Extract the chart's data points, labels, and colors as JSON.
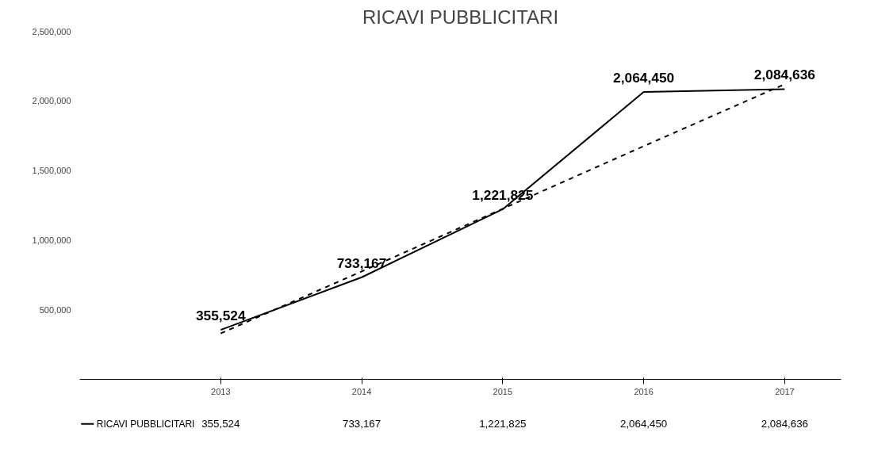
{
  "chart_data": {
    "type": "line",
    "title": "RICAVI PUBBLICITARI",
    "categories": [
      "2013",
      "2014",
      "2015",
      "2016",
      "2017"
    ],
    "series": [
      {
        "name": "RICAVI PUBBLICITARI",
        "color": "#000000",
        "values": [
          355524,
          733167,
          1221825,
          2064450,
          2084636
        ],
        "value_labels": [
          "355,524",
          "733,167",
          "1,221,825",
          "2,064,450",
          "2,084,636"
        ],
        "line_style": "solid"
      },
      {
        "type": "line",
        "color": "#000000",
        "values": [
          330000,
          775000,
          1225000,
          1675000,
          2120000
        ],
        "line_style": "dashed"
      }
    ],
    "ylim": [
      0,
      2500000
    ],
    "yticks": [
      {
        "value": 0,
        "label": null
      },
      {
        "value": 500000,
        "label": "500,000"
      },
      {
        "value": 1000000,
        "label": "1,000,000"
      },
      {
        "value": 1500000,
        "label": "1,500,000"
      },
      {
        "value": 2000000,
        "label": "2,000,000"
      },
      {
        "value": 2500000,
        "label": "2,500,000"
      }
    ],
    "legend": "bottom",
    "grid": false,
    "marker": "none"
  }
}
